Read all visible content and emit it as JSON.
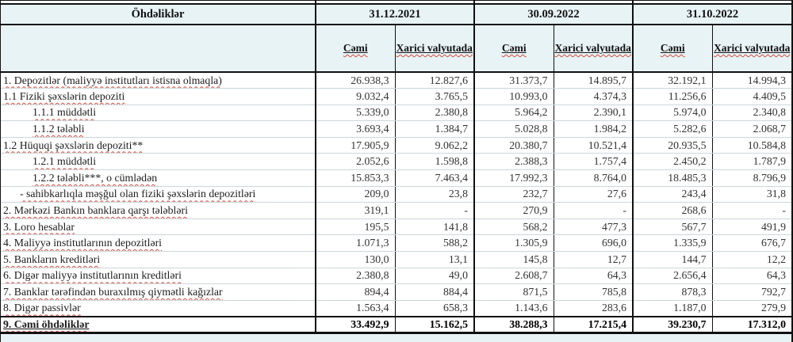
{
  "table": {
    "title": "Öhdəliklər",
    "periods": [
      "31.12.2021",
      "30.09.2022",
      "31.10.2022"
    ],
    "subcol_total": "Cəmi",
    "subcol_foreign": "Xarici valyutada",
    "rows": [
      {
        "label": "1. Depozitlər (maliyyə institutları istisna olmaqla)",
        "values": [
          "26.938,3",
          "12.827,6",
          "31.373,7",
          "14.895,7",
          "32.192,1",
          "14.994,3"
        ]
      },
      {
        "label": "1.1 Fiziki şəxslərin depoziti",
        "values": [
          "9.032,4",
          "3.765,5",
          "10.993,0",
          "4.374,3",
          "11.256,6",
          "4.409,5"
        ]
      },
      {
        "label": "1.1.1 müddətli",
        "values": [
          "5.339,0",
          "2.380,8",
          "5.964,2",
          "2.390,1",
          "5.974,0",
          "2.340,8"
        ]
      },
      {
        "label": "1.1.2 tələbli",
        "values": [
          "3.693,4",
          "1.384,7",
          "5.028,8",
          "1.984,2",
          "5.282,6",
          "2.068,7"
        ]
      },
      {
        "label": "1.2 Hüquqi şəxslərin depoziti**",
        "values": [
          "17.905,9",
          "9.062,2",
          "20.380,7",
          "10.521,4",
          "20.935,5",
          "10.584,8"
        ]
      },
      {
        "label": "1.2.1 müddətli",
        "values": [
          "2.052,6",
          "1.598,8",
          "2.388,3",
          "1.757,4",
          "2.450,2",
          "1.787,9"
        ]
      },
      {
        "label": "1.2.2 tələbli***, o cümlədən",
        "values": [
          "15.853,3",
          "7.463,4",
          "17.992,3",
          "8.764,0",
          "18.485,3",
          "8.796,9"
        ]
      },
      {
        "label": "- sahibkarlıqla məşğul olan fiziki şəxslərin depozitləri",
        "values": [
          "209,0",
          "23,8",
          "232,7",
          "27,6",
          "243,4",
          "31,8"
        ]
      },
      {
        "label": "2. Mərkəzi Bankın banklara qarşı tələbləri",
        "values": [
          "319,1",
          "-",
          "270,9",
          "-",
          "268,6",
          "-"
        ]
      },
      {
        "label": "3. Loro hesablar",
        "values": [
          "195,5",
          "141,8",
          "568,2",
          "477,3",
          "567,7",
          "491,9"
        ]
      },
      {
        "label": "4. Maliyyə institutlarının  depozitləri",
        "values": [
          "1.071,3",
          "588,2",
          "1.305,9",
          "696,0",
          "1.335,9",
          "676,7"
        ]
      },
      {
        "label": "5. Bankların kreditləri",
        "values": [
          "130,0",
          "13,1",
          "145,8",
          "12,7",
          "144,7",
          "12,2"
        ]
      },
      {
        "label": "6. Digər maliyyə institutlarının kreditləri",
        "values": [
          "2.380,8",
          "49,0",
          "2.608,7",
          "64,3",
          "2.656,4",
          "64,3"
        ]
      },
      {
        "label": "7. Banklar tərəfindən buraxılmış qiymətli kağızlar",
        "values": [
          "894,4",
          "884,4",
          "871,5",
          "785,8",
          "878,3",
          "792,7"
        ]
      },
      {
        "label": "8. Digər passivlər",
        "values": [
          "1.563,4",
          "658,3",
          "1.143,6",
          "283,6",
          "1.187,0",
          "279,9"
        ]
      },
      {
        "label": "9. Cəmi öhdəliklər",
        "values": [
          "33.492,9",
          "15.162,5",
          "38.288,3",
          "17.215,4",
          "39.230,7",
          "17.312,0"
        ]
      }
    ]
  }
}
